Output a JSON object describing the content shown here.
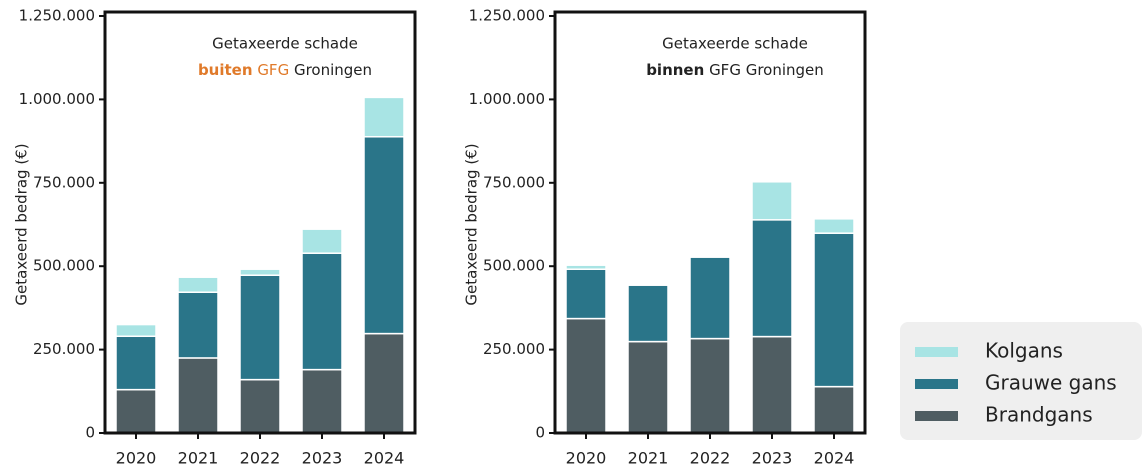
{
  "chart_data": [
    {
      "type": "stacked-bar",
      "title": "Getaxeerde schade",
      "subtitle_parts": [
        {
          "text": "buiten",
          "color": "#e07a2a",
          "bold": true
        },
        {
          "text": "GFG",
          "color": "#e07a2a",
          "bold": false
        },
        {
          "text": "Groningen",
          "color": "#222222",
          "bold": false
        }
      ],
      "ylabel": "Getaxeerd bedrag (€)",
      "categories": [
        "2020",
        "2021",
        "2022",
        "2023",
        "2024"
      ],
      "series": [
        {
          "name": "Brandgans",
          "color": "#4f5d62",
          "values": [
            130000,
            225000,
            160000,
            190000,
            298000
          ]
        },
        {
          "name": "Grauwe gans",
          "color": "#2a7589",
          "values": [
            160000,
            197000,
            313000,
            349000,
            590000
          ]
        },
        {
          "name": "Kolgans",
          "color": "#a8e4e4",
          "values": [
            35000,
            45000,
            18000,
            72000,
            118000
          ]
        }
      ],
      "ylim": [
        0,
        1250000
      ],
      "yticks": [
        0,
        {
          "value": 250000,
          "label": "250.000"
        },
        {
          "value": 500000,
          "label": "500.000"
        },
        {
          "value": 750000,
          "label": "750.000"
        },
        {
          "value": 1000000,
          "label": "1.000.000"
        },
        {
          "value": 1250000,
          "label": "1.250.000"
        }
      ]
    },
    {
      "type": "stacked-bar",
      "title": "Getaxeerde schade",
      "subtitle_parts": [
        {
          "text": "binnen",
          "color": "#222222",
          "bold": true
        },
        {
          "text": "GFG",
          "color": "#222222",
          "bold": false
        },
        {
          "text": "Groningen",
          "color": "#222222",
          "bold": false
        }
      ],
      "ylabel": "Getaxeerd bedrag (€)",
      "categories": [
        "2020",
        "2021",
        "2022",
        "2023",
        "2024"
      ],
      "series": [
        {
          "name": "Brandgans",
          "color": "#4f5d62",
          "values": [
            343000,
            274000,
            283000,
            289000,
            139000
          ]
        },
        {
          "name": "Grauwe gans",
          "color": "#2a7589",
          "values": [
            148000,
            169000,
            244000,
            350000,
            460000
          ]
        },
        {
          "name": "Kolgans",
          "color": "#a8e4e4",
          "values": [
            12000,
            0,
            0,
            114000,
            43000
          ]
        }
      ],
      "ylim": [
        0,
        1250000
      ],
      "yticks": [
        0,
        {
          "value": 250000,
          "label": "250.000"
        },
        {
          "value": 500000,
          "label": "500.000"
        },
        {
          "value": 750000,
          "label": "750.000"
        },
        {
          "value": 1000000,
          "label": "1.000.000"
        },
        {
          "value": 1250000,
          "label": "1.250.000"
        }
      ]
    }
  ]
}
